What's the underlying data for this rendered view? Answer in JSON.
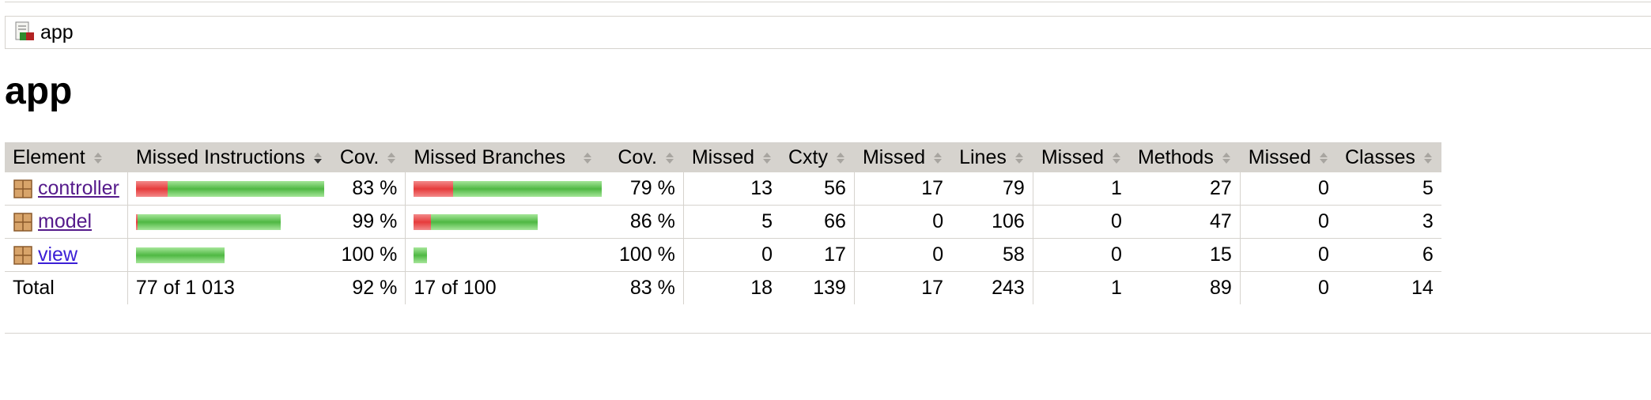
{
  "breadcrumb": {
    "icon": "report-icon",
    "label": "app"
  },
  "page_title": "app",
  "table": {
    "headers": {
      "element": "Element",
      "missed_instructions": "Missed Instructions",
      "instr_cov": "Cov.",
      "missed_branches": "Missed Branches",
      "branch_cov": "Cov.",
      "missed_cxty": "Missed",
      "cxty": "Cxty",
      "missed_lines": "Missed",
      "lines": "Lines",
      "missed_methods": "Missed",
      "methods": "Methods",
      "missed_classes": "Missed",
      "classes": "Classes"
    },
    "rows": [
      {
        "name": "controller",
        "instr_missed_frac": 0.17,
        "instr_covered_frac": 0.83,
        "instr_bar_scale": 1.0,
        "instr_cov": "83 %",
        "branch_missed_frac": 0.21,
        "branch_covered_frac": 0.79,
        "branch_bar_scale": 1.0,
        "branch_cov": "79 %",
        "missed_cxty": "13",
        "cxty": "56",
        "missed_lines": "17",
        "lines": "79",
        "missed_methods": "1",
        "methods": "27",
        "missed_classes": "0",
        "classes": "5"
      },
      {
        "name": "model",
        "instr_missed_frac": 0.01,
        "instr_covered_frac": 0.99,
        "instr_bar_scale": 0.77,
        "instr_cov": "99 %",
        "branch_missed_frac": 0.14,
        "branch_covered_frac": 0.86,
        "branch_bar_scale": 0.66,
        "branch_cov": "86 %",
        "missed_cxty": "5",
        "cxty": "66",
        "missed_lines": "0",
        "lines": "106",
        "missed_methods": "0",
        "methods": "47",
        "missed_classes": "0",
        "classes": "3"
      },
      {
        "name": "view",
        "instr_missed_frac": 0.0,
        "instr_covered_frac": 1.0,
        "instr_bar_scale": 0.47,
        "instr_cov": "100 %",
        "branch_missed_frac": 0.0,
        "branch_covered_frac": 1.0,
        "branch_bar_scale": 0.07,
        "branch_cov": "100 %",
        "missed_cxty": "0",
        "cxty": "17",
        "missed_lines": "0",
        "lines": "58",
        "missed_methods": "0",
        "methods": "15",
        "missed_classes": "0",
        "classes": "6"
      }
    ],
    "total": {
      "label": "Total",
      "instructions": "77 of 1 013",
      "instr_cov": "92 %",
      "branches": "17 of 100",
      "branch_cov": "83 %",
      "missed_cxty": "18",
      "cxty": "139",
      "missed_lines": "17",
      "lines": "243",
      "missed_methods": "1",
      "methods": "89",
      "missed_classes": "0",
      "classes": "14"
    }
  },
  "colors": {
    "header_bg": "#d6d3ce",
    "bar_red": "#e63b3b",
    "bar_green": "#4fb843",
    "link": "#3b1fd6"
  }
}
